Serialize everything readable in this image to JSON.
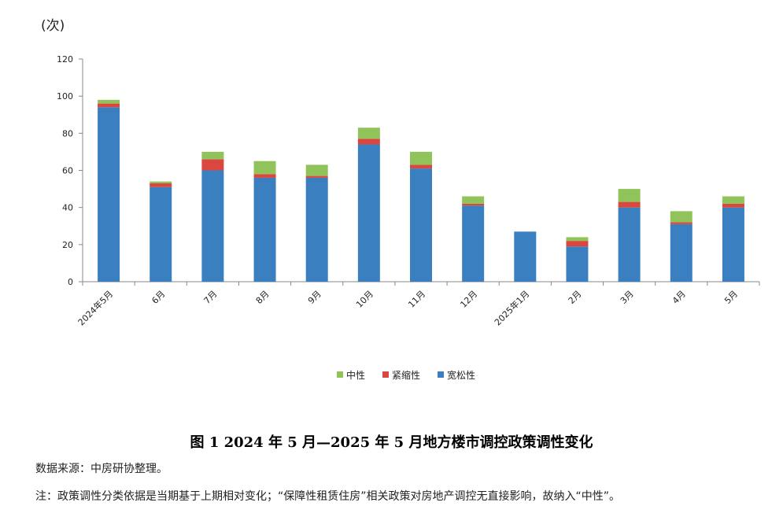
{
  "chart_data": {
    "type": "bar",
    "stacked": true,
    "unit": "(次)",
    "categories": [
      "2024年5月",
      "6月",
      "7月",
      "8月",
      "9月",
      "10月",
      "11月",
      "12月",
      "2025年1月",
      "2月",
      "3月",
      "4月",
      "5月"
    ],
    "series": [
      {
        "name": "宽松性",
        "color": "#3a80c1",
        "values": [
          94,
          51,
          60,
          56,
          56,
          74,
          61,
          41,
          27,
          19,
          40,
          31,
          40
        ]
      },
      {
        "name": "紧缩性",
        "color": "#d9473f",
        "values": [
          2,
          2,
          6,
          2,
          1,
          3,
          2,
          1,
          0,
          3,
          3,
          1,
          2
        ]
      },
      {
        "name": "中性",
        "color": "#90c45a",
        "values": [
          2,
          1,
          4,
          7,
          6,
          6,
          7,
          4,
          0,
          2,
          7,
          6,
          4
        ]
      }
    ],
    "legend_order": [
      "中性",
      "紧缩性",
      "宽松性"
    ],
    "ylim": [
      0,
      120
    ],
    "yticks": [
      0,
      20,
      40,
      60,
      80,
      100,
      120
    ],
    "grid": false,
    "legend_position": "bottom"
  },
  "caption": "图 1  2024 年 5 月—2025 年 5 月地方楼市调控政策调性变化",
  "source": "数据来源：中房研协整理。",
  "note": "注：政策调性分类依据是当期基于上期相对变化；“保障性租赁住房”相关政策对房地产调控无直接影响，故纳入“中性”。"
}
